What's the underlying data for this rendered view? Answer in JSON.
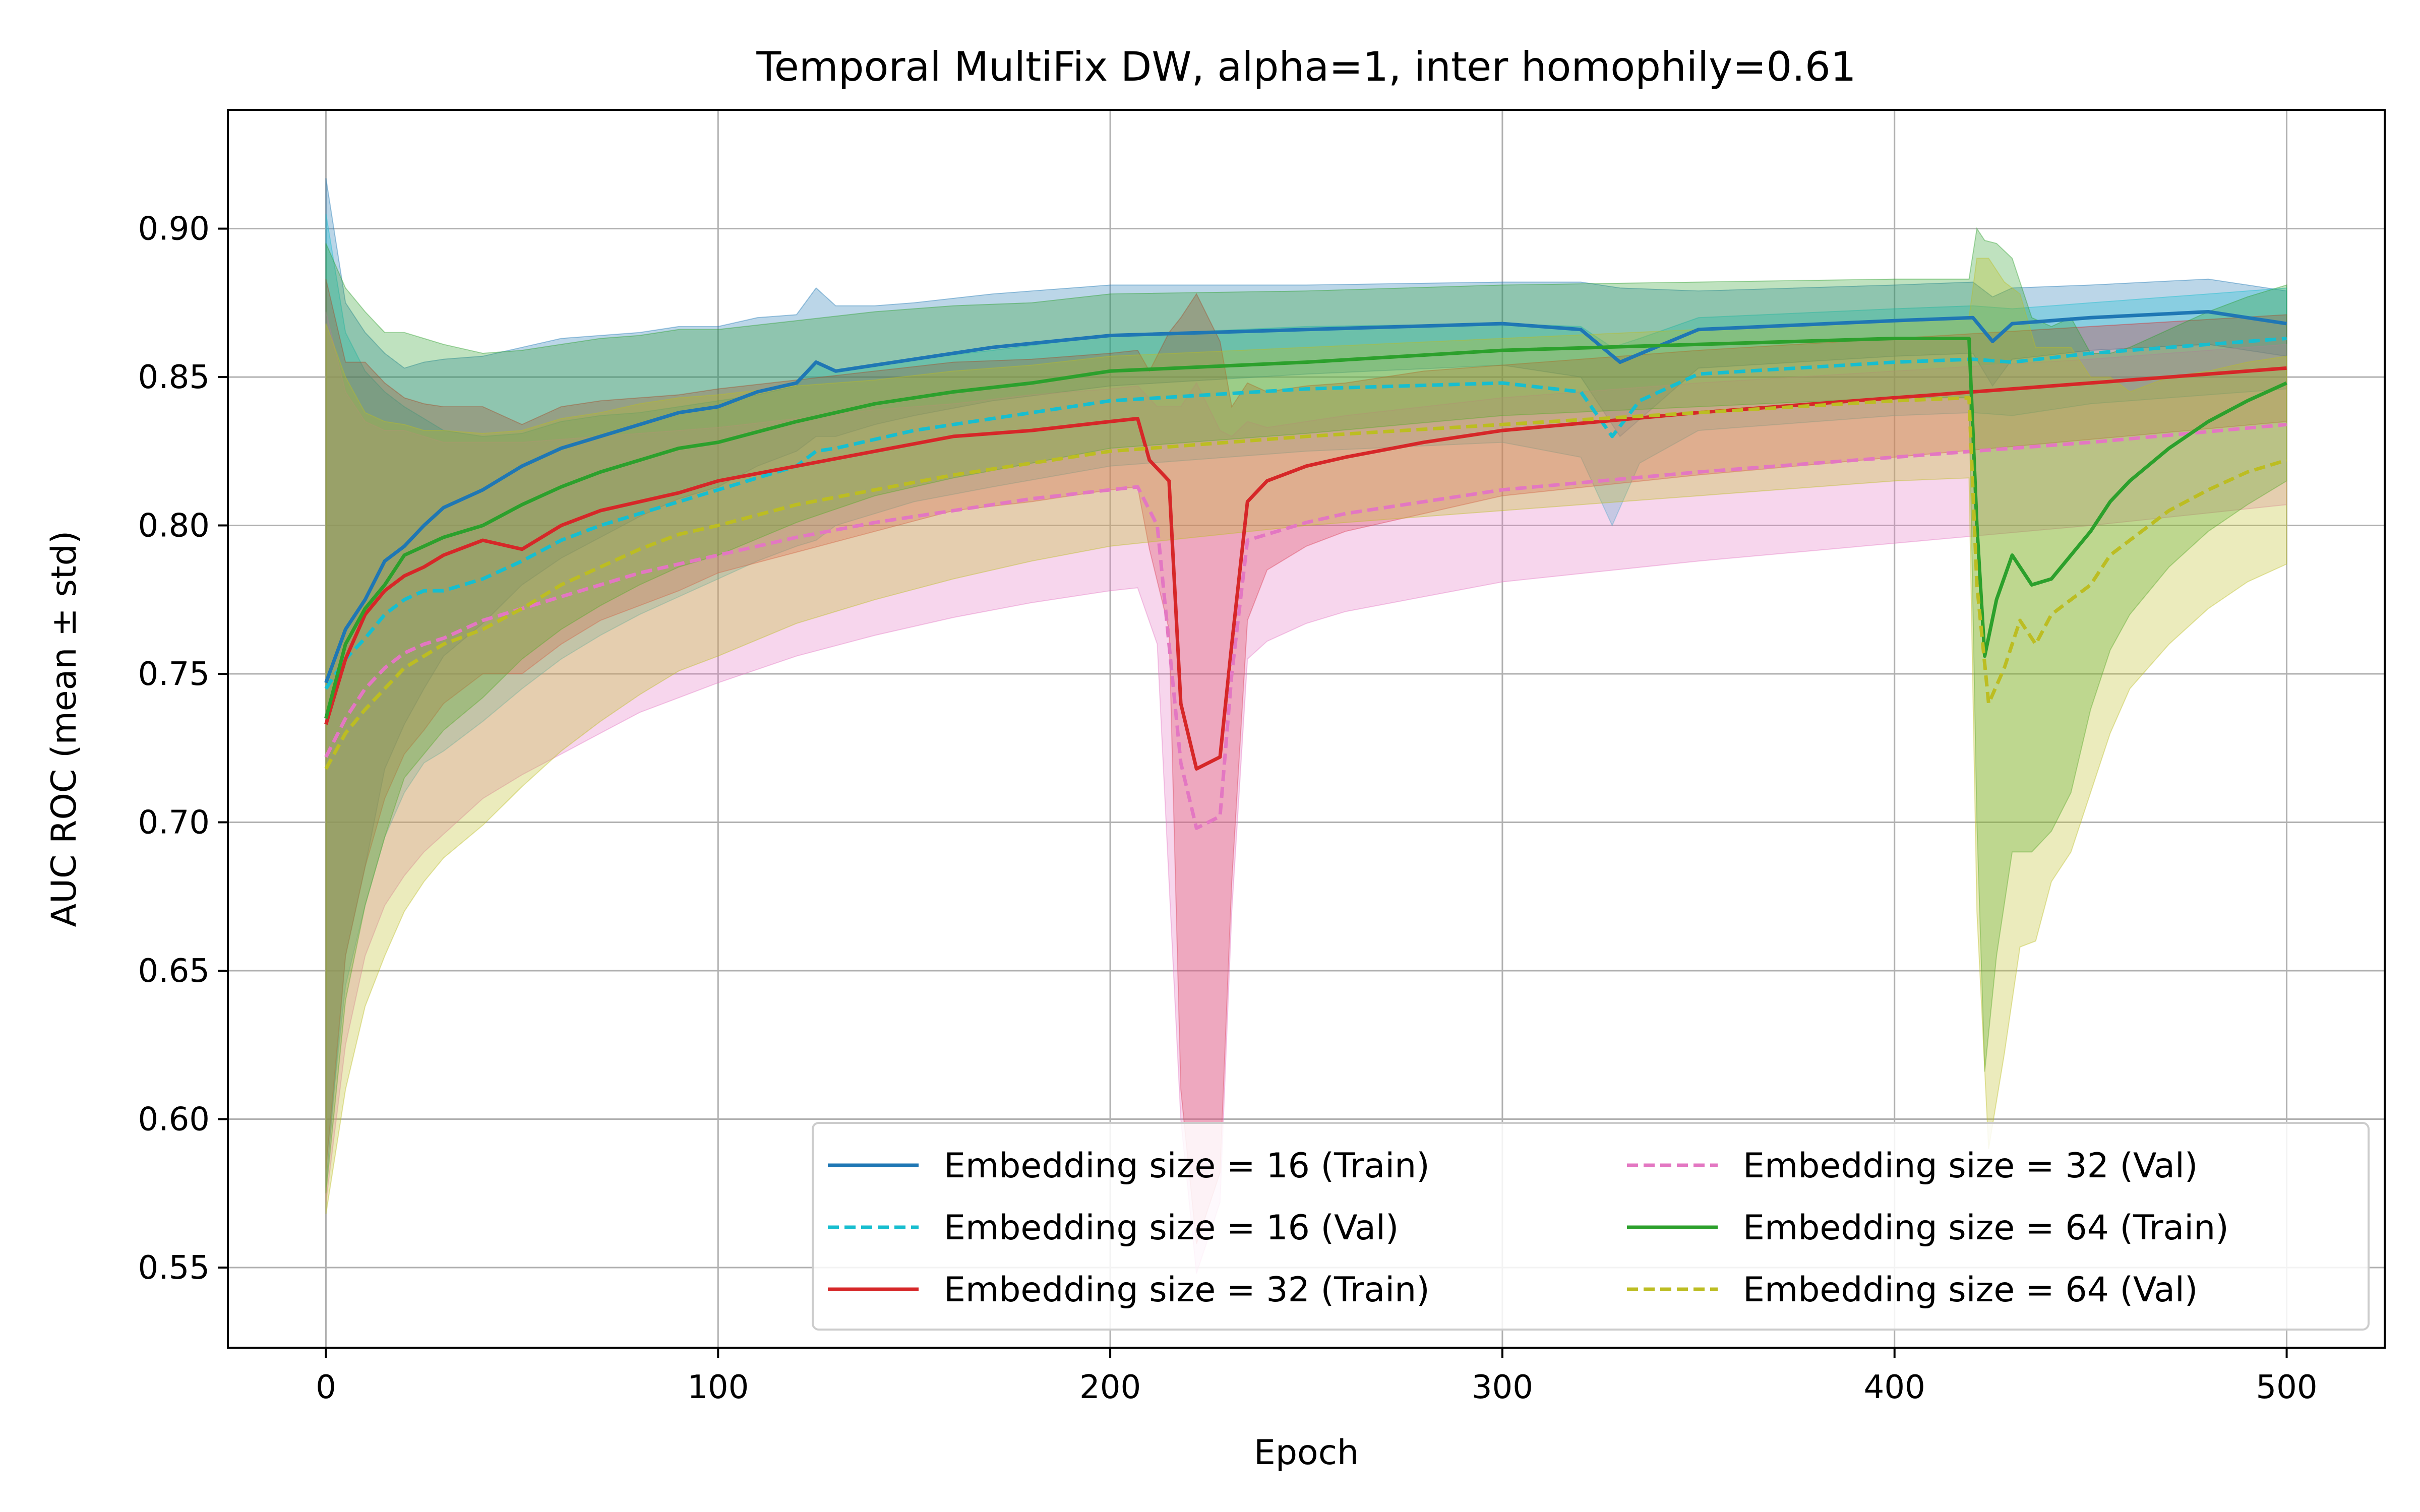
{
  "chart_data": {
    "type": "line",
    "title": "Temporal MultiFix DW, alpha=1, inter homophily=0.61",
    "xlabel": "Epoch",
    "ylabel": "AUC ROC (mean ± std)",
    "xlim": [
      -25,
      525
    ],
    "ylim": [
      0.523,
      0.94
    ],
    "x_ticks": [
      0,
      100,
      200,
      300,
      400,
      500
    ],
    "y_ticks": [
      0.55,
      0.6,
      0.65,
      0.7,
      0.75,
      0.8,
      0.85,
      0.9
    ],
    "grid": true,
    "legend": {
      "placement": "lower-right",
      "columns": 2
    },
    "series": [
      {
        "name": "Embedding size = 16 (Train)",
        "color": "#1f77b4",
        "dash": "solid",
        "x": [
          0,
          5,
          10,
          15,
          20,
          25,
          30,
          40,
          50,
          60,
          70,
          80,
          90,
          100,
          110,
          120,
          125,
          130,
          140,
          150,
          170,
          200,
          250,
          300,
          320,
          330,
          350,
          400,
          420,
          425,
          430,
          450,
          480,
          500
        ],
        "mean": [
          0.747,
          0.765,
          0.775,
          0.788,
          0.793,
          0.8,
          0.806,
          0.812,
          0.82,
          0.826,
          0.83,
          0.834,
          0.838,
          0.84,
          0.845,
          0.848,
          0.855,
          0.852,
          0.854,
          0.856,
          0.86,
          0.864,
          0.866,
          0.868,
          0.866,
          0.855,
          0.866,
          0.869,
          0.87,
          0.862,
          0.868,
          0.87,
          0.872,
          0.868
        ],
        "std": [
          0.17,
          0.11,
          0.09,
          0.07,
          0.06,
          0.055,
          0.05,
          0.045,
          0.04,
          0.037,
          0.034,
          0.031,
          0.029,
          0.027,
          0.025,
          0.023,
          0.025,
          0.022,
          0.02,
          0.019,
          0.018,
          0.017,
          0.015,
          0.014,
          0.016,
          0.025,
          0.013,
          0.012,
          0.012,
          0.015,
          0.012,
          0.011,
          0.011,
          0.011
        ]
      },
      {
        "name": "Embedding size = 16 (Val)",
        "color": "#17becf",
        "dash": "dashed",
        "x": [
          0,
          5,
          10,
          15,
          20,
          25,
          30,
          40,
          50,
          60,
          70,
          80,
          90,
          100,
          110,
          120,
          125,
          130,
          150,
          170,
          200,
          250,
          300,
          320,
          328,
          335,
          350,
          400,
          420,
          430,
          450,
          480,
          500
        ],
        "mean": [
          0.745,
          0.755,
          0.762,
          0.77,
          0.775,
          0.778,
          0.778,
          0.782,
          0.788,
          0.795,
          0.8,
          0.804,
          0.808,
          0.812,
          0.816,
          0.82,
          0.825,
          0.826,
          0.832,
          0.836,
          0.842,
          0.846,
          0.848,
          0.845,
          0.83,
          0.842,
          0.851,
          0.855,
          0.856,
          0.855,
          0.858,
          0.861,
          0.863
        ],
        "std": [
          0.16,
          0.11,
          0.09,
          0.075,
          0.065,
          0.058,
          0.054,
          0.048,
          0.043,
          0.04,
          0.037,
          0.034,
          0.032,
          0.03,
          0.028,
          0.027,
          0.03,
          0.026,
          0.024,
          0.023,
          0.022,
          0.021,
          0.02,
          0.022,
          0.03,
          0.021,
          0.019,
          0.018,
          0.018,
          0.018,
          0.017,
          0.017,
          0.017
        ]
      },
      {
        "name": "Embedding size = 32 (Train)",
        "color": "#d62728",
        "dash": "solid",
        "x": [
          0,
          5,
          10,
          15,
          20,
          25,
          30,
          40,
          50,
          60,
          70,
          80,
          90,
          100,
          120,
          140,
          160,
          180,
          200,
          207,
          210,
          215,
          218,
          222,
          228,
          231,
          235,
          240,
          250,
          260,
          280,
          300,
          350,
          400,
          450,
          500
        ],
        "mean": [
          0.733,
          0.755,
          0.77,
          0.778,
          0.783,
          0.786,
          0.79,
          0.795,
          0.792,
          0.8,
          0.805,
          0.808,
          0.811,
          0.815,
          0.82,
          0.825,
          0.83,
          0.832,
          0.835,
          0.836,
          0.822,
          0.815,
          0.74,
          0.718,
          0.722,
          0.76,
          0.808,
          0.815,
          0.82,
          0.823,
          0.828,
          0.832,
          0.838,
          0.843,
          0.848,
          0.853
        ],
        "std": [
          0.15,
          0.1,
          0.085,
          0.07,
          0.06,
          0.055,
          0.05,
          0.045,
          0.042,
          0.04,
          0.037,
          0.035,
          0.033,
          0.031,
          0.029,
          0.027,
          0.025,
          0.024,
          0.023,
          0.023,
          0.03,
          0.05,
          0.13,
          0.16,
          0.14,
          0.08,
          0.04,
          0.03,
          0.027,
          0.025,
          0.024,
          0.022,
          0.021,
          0.02,
          0.019,
          0.018
        ]
      },
      {
        "name": "Embedding size = 32 (Val)",
        "color": "#e377c2",
        "dash": "dashed",
        "x": [
          0,
          5,
          10,
          15,
          20,
          25,
          30,
          40,
          50,
          60,
          70,
          80,
          90,
          100,
          120,
          140,
          160,
          180,
          200,
          207,
          212,
          218,
          222,
          228,
          231,
          235,
          240,
          250,
          260,
          280,
          300,
          350,
          400,
          450,
          500
        ],
        "mean": [
          0.722,
          0.735,
          0.745,
          0.752,
          0.757,
          0.76,
          0.762,
          0.768,
          0.772,
          0.776,
          0.78,
          0.784,
          0.787,
          0.79,
          0.796,
          0.801,
          0.805,
          0.809,
          0.812,
          0.813,
          0.8,
          0.72,
          0.698,
          0.702,
          0.75,
          0.795,
          0.797,
          0.801,
          0.804,
          0.808,
          0.812,
          0.818,
          0.823,
          0.828,
          0.834
        ],
        "std": [
          0.15,
          0.11,
          0.09,
          0.08,
          0.075,
          0.07,
          0.066,
          0.06,
          0.056,
          0.053,
          0.05,
          0.047,
          0.045,
          0.043,
          0.04,
          0.038,
          0.036,
          0.035,
          0.034,
          0.034,
          0.04,
          0.12,
          0.15,
          0.13,
          0.08,
          0.04,
          0.036,
          0.034,
          0.033,
          0.032,
          0.031,
          0.03,
          0.029,
          0.028,
          0.027
        ]
      },
      {
        "name": "Embedding size = 64 (Train)",
        "color": "#2ca02c",
        "dash": "solid",
        "x": [
          0,
          5,
          10,
          15,
          20,
          25,
          30,
          40,
          50,
          60,
          70,
          80,
          90,
          100,
          120,
          140,
          160,
          180,
          200,
          250,
          300,
          350,
          400,
          419,
          421,
          423,
          426,
          430,
          435,
          440,
          445,
          450,
          455,
          460,
          470,
          480,
          490,
          500
        ],
        "mean": [
          0.735,
          0.76,
          0.772,
          0.78,
          0.79,
          0.793,
          0.796,
          0.8,
          0.807,
          0.813,
          0.818,
          0.822,
          0.826,
          0.828,
          0.835,
          0.841,
          0.845,
          0.848,
          0.852,
          0.855,
          0.859,
          0.861,
          0.863,
          0.863,
          0.8,
          0.756,
          0.775,
          0.79,
          0.78,
          0.782,
          0.79,
          0.798,
          0.808,
          0.815,
          0.826,
          0.835,
          0.842,
          0.848
        ],
        "std": [
          0.16,
          0.12,
          0.1,
          0.085,
          0.075,
          0.07,
          0.065,
          0.058,
          0.052,
          0.048,
          0.045,
          0.042,
          0.04,
          0.038,
          0.034,
          0.031,
          0.029,
          0.027,
          0.026,
          0.024,
          0.022,
          0.021,
          0.02,
          0.02,
          0.1,
          0.14,
          0.12,
          0.1,
          0.09,
          0.085,
          0.08,
          0.06,
          0.05,
          0.045,
          0.04,
          0.037,
          0.035,
          0.033
        ]
      },
      {
        "name": "Embedding size = 64 (Val)",
        "color": "#bcbd22",
        "dash": "dashed",
        "x": [
          0,
          5,
          10,
          15,
          20,
          25,
          30,
          40,
          50,
          60,
          70,
          80,
          90,
          100,
          120,
          140,
          160,
          180,
          200,
          250,
          300,
          350,
          400,
          419,
          421,
          424,
          428,
          432,
          436,
          440,
          445,
          450,
          455,
          460,
          470,
          480,
          490,
          500
        ],
        "mean": [
          0.718,
          0.73,
          0.738,
          0.745,
          0.752,
          0.756,
          0.76,
          0.765,
          0.772,
          0.78,
          0.786,
          0.792,
          0.797,
          0.8,
          0.807,
          0.812,
          0.817,
          0.821,
          0.825,
          0.83,
          0.834,
          0.838,
          0.842,
          0.843,
          0.78,
          0.74,
          0.752,
          0.768,
          0.76,
          0.77,
          0.775,
          0.78,
          0.79,
          0.795,
          0.805,
          0.812,
          0.818,
          0.822
        ],
        "std": [
          0.15,
          0.12,
          0.1,
          0.09,
          0.082,
          0.076,
          0.072,
          0.066,
          0.06,
          0.056,
          0.052,
          0.049,
          0.046,
          0.044,
          0.04,
          0.037,
          0.035,
          0.033,
          0.032,
          0.03,
          0.029,
          0.028,
          0.027,
          0.027,
          0.11,
          0.15,
          0.13,
          0.11,
          0.1,
          0.09,
          0.085,
          0.07,
          0.06,
          0.05,
          0.045,
          0.04,
          0.037,
          0.035
        ]
      }
    ]
  }
}
